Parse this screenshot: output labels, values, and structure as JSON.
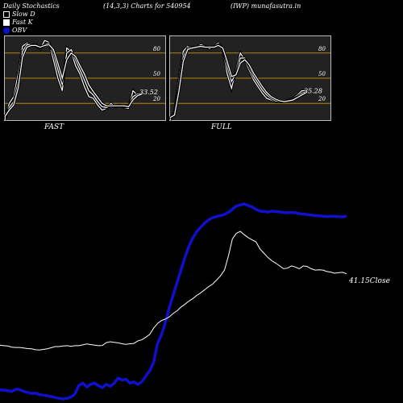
{
  "header": {
    "left": "Daily Stochastics",
    "center": "(14,3,3) Charts for 540954",
    "right": "(IWP) munafasutra.in"
  },
  "legend": [
    {
      "label": "Slow  D",
      "color": "#ffffff"
    },
    {
      "label": "Fast K",
      "color": "#ffffff"
    },
    {
      "label": "OBV",
      "color": "#1010cc"
    }
  ],
  "chart_data": [
    {
      "type": "line",
      "panel": "FAST",
      "title": "FAST",
      "ylim": [
        0,
        100
      ],
      "levels": [
        80,
        50,
        20
      ],
      "last_value_label": "33.52",
      "series": [
        {
          "values": [
            0,
            20,
            28,
            55,
            88,
            92,
            89,
            90,
            85,
            95,
            93,
            72,
            50,
            35,
            86,
            82,
            65,
            55,
            40,
            28,
            26,
            18,
            12,
            14,
            20,
            16,
            18,
            15,
            14,
            35,
            30,
            33.52
          ]
        },
        {
          "values": [
            2,
            15,
            22,
            45,
            82,
            90,
            90,
            88,
            86,
            90,
            92,
            80,
            60,
            42,
            80,
            84,
            72,
            60,
            48,
            35,
            30,
            22,
            16,
            15,
            17,
            17,
            17,
            16,
            16,
            28,
            31,
            32
          ]
        },
        {
          "values": [
            4,
            12,
            18,
            38,
            75,
            87,
            89,
            89,
            87,
            89,
            90,
            84,
            68,
            50,
            72,
            80,
            76,
            65,
            55,
            42,
            34,
            27,
            20,
            17,
            17,
            17,
            17,
            17,
            16,
            24,
            29,
            31
          ]
        }
      ]
    },
    {
      "type": "line",
      "panel": "FULL",
      "title": "FULL",
      "ylim": [
        0,
        100
      ],
      "levels": [
        80,
        50,
        20
      ],
      "last_value_label": "35.28",
      "series": [
        {
          "values": [
            0,
            10,
            48,
            82,
            88,
            86,
            87,
            90,
            88,
            85,
            88,
            92,
            85,
            55,
            38,
            60,
            80,
            72,
            60,
            48,
            40,
            32,
            26,
            24,
            22,
            22,
            22,
            24,
            26,
            30,
            35,
            35.28
          ]
        },
        {
          "values": [
            2,
            8,
            40,
            76,
            86,
            87,
            87,
            88,
            87,
            87,
            87,
            90,
            86,
            64,
            46,
            56,
            74,
            74,
            64,
            52,
            44,
            36,
            30,
            26,
            23,
            22,
            22,
            23,
            25,
            28,
            32,
            34
          ]
        },
        {
          "values": [
            3,
            6,
            34,
            70,
            84,
            86,
            87,
            88,
            87,
            87,
            87,
            89,
            86,
            70,
            52,
            54,
            68,
            72,
            66,
            56,
            48,
            40,
            33,
            28,
            25,
            23,
            22,
            23,
            24,
            27,
            30,
            33
          ]
        }
      ]
    },
    {
      "type": "line",
      "panel": "price-obv",
      "close_label": "41.15Close",
      "series": [
        {
          "name": "Close",
          "color": "#ffffff",
          "values": [
            0.6,
            0.58,
            0.57,
            0.53,
            0.52,
            0.52,
            0.5,
            0.48,
            0.47,
            0.44,
            0.43,
            0.45,
            0.47,
            0.51,
            0.55,
            0.55,
            0.57,
            0.58,
            0.56,
            0.58,
            0.58,
            0.61,
            0.64,
            0.62,
            0.6,
            0.58,
            0.59,
            0.69,
            0.72,
            0.7,
            0.68,
            0.65,
            0.63,
            0.65,
            0.66,
            0.75,
            0.79,
            0.88,
            0.98,
            1.2,
            1.37,
            1.47,
            1.52,
            1.6,
            1.72,
            1.82,
            1.95,
            2.05,
            2.16,
            2.25,
            2.36,
            2.45,
            2.56,
            2.67,
            2.76,
            2.9,
            3.05,
            3.25,
            3.75,
            4.35,
            4.55,
            4.62,
            4.5,
            4.4,
            4.32,
            4.25,
            4.0,
            3.85,
            3.7,
            3.58,
            3.5,
            3.4,
            3.3,
            3.32,
            3.4,
            3.36,
            3.3,
            3.4,
            3.38,
            3.3,
            3.25,
            3.26,
            3.25,
            3.2,
            3.18,
            3.14,
            3.16,
            3.17,
            3.12
          ]
        },
        {
          "name": "OBV",
          "color": "#1010cc",
          "values": [
            1.0,
            0.9,
            0.6,
            0.3,
            1.3,
            1.1,
            0.3,
            -0.2,
            -0.7,
            -0.5,
            -1.2,
            -1.5,
            -1.8,
            -2.1,
            -2.6,
            -3.0,
            -3.3,
            -3.0,
            -2.4,
            -1.0,
            3.0,
            4.2,
            2.4,
            3.6,
            4.2,
            3.0,
            2.1,
            3.6,
            2.7,
            4.2,
            6.6,
            5.7,
            6.0,
            4.2,
            4.8,
            3.6,
            4.8,
            7.5,
            10.0,
            14.0,
            23.0,
            27.0,
            33.0,
            40.0,
            46.0,
            52.0,
            58.0,
            64.0,
            69.0,
            73.0,
            76.0,
            78.0,
            80.0,
            81.5,
            82.5,
            83.0,
            83.5,
            84.0,
            85.0,
            86.5,
            88.0,
            88.5,
            89.0,
            88.2,
            87.6,
            86.4,
            85.6,
            85.4,
            85.2,
            85.6,
            85.4,
            85.2,
            85.0,
            84.8,
            85.0,
            84.8,
            84.4,
            84.2,
            84.0,
            83.7,
            83.5,
            83.4,
            83.2,
            83.0,
            83.2,
            83.1,
            83.0,
            82.9,
            83.2
          ]
        }
      ]
    }
  ],
  "panels": {
    "fast_label": "FAST",
    "full_label": "FULL"
  },
  "levels_text": {
    "l80": "80",
    "l50": "50",
    "l20": "20"
  }
}
